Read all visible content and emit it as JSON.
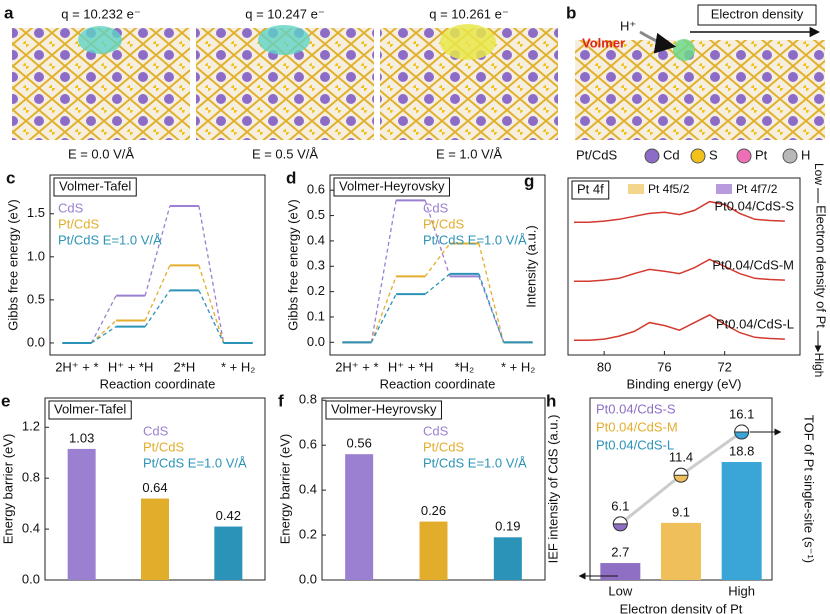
{
  "panel_a": {
    "label": "a",
    "charges": [
      "q = 10.232 e⁻",
      "q = 10.247 e⁻",
      "q = 10.261 e⁻"
    ],
    "fields": [
      "E = 0.0 V/Å",
      "E = 0.5 V/Å",
      "E = 1.0 V/Å"
    ]
  },
  "panel_b": {
    "label": "b",
    "proton": "H⁺",
    "step": "Volmer",
    "arrow_label": "Electron density",
    "legend_title": "Pt/CdS",
    "legend": [
      {
        "name": "Cd",
        "color": "#8d6cc8"
      },
      {
        "name": "S",
        "color": "#f2c21b"
      },
      {
        "name": "Pt",
        "color": "#ee6fb8"
      },
      {
        "name": "H",
        "color": "#b8b8b8"
      }
    ]
  },
  "chart_data": [
    {
      "label": "c",
      "type": "step",
      "title": "Volmer-Tafel",
      "xlabel": "Reaction coordinate",
      "ylabel": "Gibbs free energy (eV)",
      "categories": [
        "2H⁺ + *",
        "H⁺ + *H",
        "2*H",
        "* + H₂"
      ],
      "legend": "upper left",
      "series": [
        {
          "name": "CdS",
          "color": "#9b7fd0",
          "values": [
            0,
            0.55,
            1.59,
            0
          ]
        },
        {
          "name": "Pt/CdS",
          "color": "#e3ad2c",
          "values": [
            0,
            0.26,
            0.9,
            0
          ]
        },
        {
          "name": "Pt/CdS E=1.0 V/Å",
          "color": "#2b93b8",
          "values": [
            0,
            0.19,
            0.61,
            0
          ]
        }
      ],
      "ylim": [
        -0.14,
        1.95
      ],
      "yticks": [
        {
          "value": 0,
          "label": "0.0"
        },
        0.5,
        {
          "value": 1,
          "label": "1.0"
        },
        1.5
      ]
    },
    {
      "label": "d",
      "type": "step",
      "title": "Volmer-Heyrovsky",
      "xlabel": "Reaction coordinate",
      "ylabel": "Gibbs free energy (eV)",
      "categories": [
        "2H⁺ + *",
        "H⁺ + *H",
        "*H₂",
        "* + H₂"
      ],
      "legend": "upper right",
      "series": [
        {
          "name": "CdS",
          "color": "#9b7fd0",
          "values": [
            0,
            0.56,
            0.26,
            0
          ]
        },
        {
          "name": "Pt/CdS",
          "color": "#e3ad2c",
          "values": [
            0,
            0.26,
            0.39,
            0
          ]
        },
        {
          "name": "Pt/CdS E=1.0 V/Å",
          "color": "#2b93b8",
          "values": [
            0,
            0.19,
            0.27,
            0
          ]
        }
      ],
      "ylim": [
        -0.05,
        0.66
      ],
      "yticks": [
        {
          "value": 0,
          "label": "0.0"
        },
        0.1,
        0.2,
        0.3,
        0.4,
        0.5,
        0.6
      ]
    },
    {
      "label": "e",
      "type": "bar",
      "title": "Volmer-Tafel",
      "ylabel": "Energy barrier (eV)",
      "legend": "upper right",
      "categories": [
        "CdS",
        "Pt/CdS",
        "Pt/CdS E=1.0 V/Å"
      ],
      "colors": [
        "#9b7fd0",
        "#e3ad2c",
        "#2b93b8"
      ],
      "values": [
        1.03,
        0.64,
        0.42
      ],
      "ylim": [
        0,
        1.43
      ],
      "yticks": [
        {
          "value": 0,
          "label": "0.0"
        },
        0.4,
        0.8,
        1.2
      ]
    },
    {
      "label": "f",
      "type": "bar",
      "title": "Volmer-Heyrovsky",
      "ylabel": "Energy barrier (eV)",
      "legend": "upper right",
      "categories": [
        "CdS",
        "Pt/CdS",
        "Pt/CdS E=1.0 V/Å"
      ],
      "colors": [
        "#9b7fd0",
        "#e3ad2c",
        "#2b93b8"
      ],
      "values": [
        0.56,
        0.26,
        0.19
      ],
      "ylim": [
        0,
        0.81
      ],
      "yticks": [
        {
          "value": 0,
          "label": "0.0"
        },
        0.2,
        0.4,
        0.6,
        0.8
      ]
    },
    {
      "label": "g",
      "type": "line",
      "title": "Pt 4f",
      "xlabel": "Binding energy (eV)",
      "ylabel": "Intensity (a.u.)",
      "legend_entries": [
        {
          "name": "Pt 4f5/2",
          "color": "#f3d58c"
        },
        {
          "name": "Pt 4f7/2",
          "color": "#b89bdc"
        }
      ],
      "side_labels": [
        "Low",
        "Electron density of Pt",
        "High"
      ],
      "x": [
        82,
        81,
        80,
        79,
        78,
        77,
        76,
        75,
        74,
        73,
        72,
        71,
        70,
        69,
        68
      ],
      "series": [
        {
          "name": "Pt0.04/CdS-S",
          "color": "#d43a2f",
          "values": [
            2.25,
            2.25,
            2.27,
            2.3,
            2.35,
            2.4,
            2.42,
            2.38,
            2.45,
            2.6,
            2.55,
            2.4,
            2.3,
            2.28,
            2.27
          ]
        },
        {
          "name": "Pt0.04/CdS-M",
          "color": "#d43a2f",
          "values": [
            1.25,
            1.25,
            1.27,
            1.3,
            1.38,
            1.45,
            1.42,
            1.38,
            1.48,
            1.62,
            1.5,
            1.38,
            1.3,
            1.28,
            1.27
          ]
        },
        {
          "name": "Pt0.04/CdS-L",
          "color": "#d43a2f",
          "values": [
            0.25,
            0.25,
            0.27,
            0.32,
            0.4,
            0.55,
            0.5,
            0.42,
            0.55,
            0.68,
            0.52,
            0.38,
            0.3,
            0.28,
            0.27
          ]
        }
      ],
      "xlim": [
        82.4,
        67
      ],
      "xticks": [
        80,
        76,
        72
      ],
      "ylim": [
        0,
        3
      ]
    },
    {
      "label": "h",
      "type": "combo",
      "xlabel": "Electron density of Pt",
      "ylabel": "IEF intensity of CdS (a.u.)",
      "y2label": "TOF of Pt single-site (s⁻¹)",
      "categories": [
        "Low",
        null,
        "High"
      ],
      "colors": [
        "#8e6fc4",
        "#efc05a",
        "#3aa6d8"
      ],
      "legend_entries": [
        {
          "name": "Pt0.04/CdS-S",
          "color": "#8e6fc4"
        },
        {
          "name": "Pt0.04/CdS-M",
          "color": "#e3ad2c"
        },
        {
          "name": "Pt0.04/CdS-L",
          "color": "#2b93b8"
        }
      ],
      "values": [
        2.7,
        9.1,
        18.8
      ],
      "y2values": [
        6.1,
        11.4,
        16.1
      ],
      "ylim": [
        0,
        29
      ],
      "y2lim": [
        0,
        19.8
      ]
    }
  ]
}
